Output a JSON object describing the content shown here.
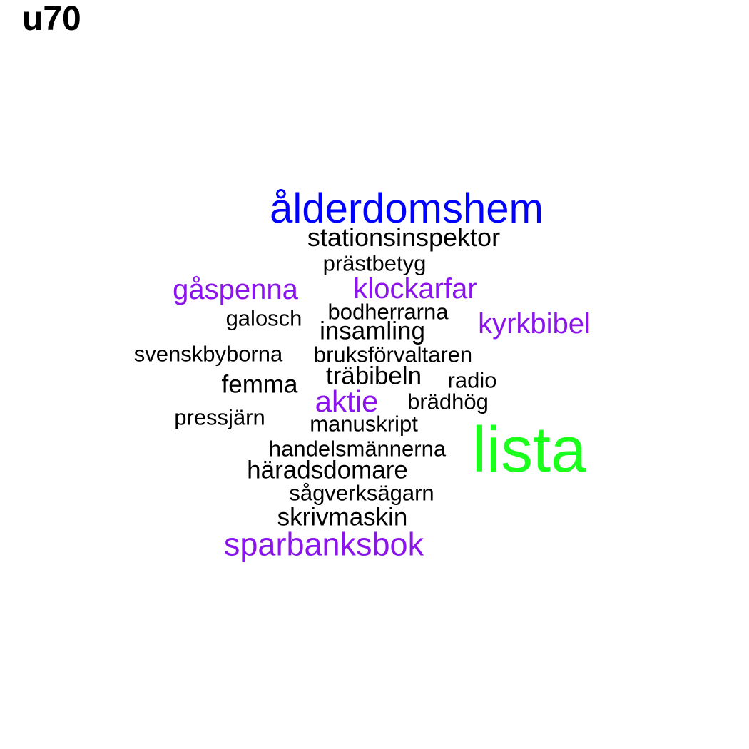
{
  "page": {
    "title": "u70"
  },
  "chart_data": {
    "type": "wordcloud",
    "title": "u70",
    "palette": {
      "black": "#000000",
      "purple": "#8b14ec",
      "blue": "#0000ff",
      "green": "#1cff1c"
    },
    "words": [
      {
        "key": "alderdomshem",
        "text": "ålderdomshem",
        "color": "#0000ff",
        "weight": 4
      },
      {
        "key": "stationsinsp",
        "text": "stationsinspektor",
        "color": "#000000",
        "weight": 2
      },
      {
        "key": "prastbetyg",
        "text": "prästbetyg",
        "color": "#000000",
        "weight": 1
      },
      {
        "key": "gaspenna",
        "text": "gåspenna",
        "color": "#8b14ec",
        "weight": 3
      },
      {
        "key": "klockarfar",
        "text": "klockarfar",
        "color": "#8b14ec",
        "weight": 3
      },
      {
        "key": "bodherrarna",
        "text": "bodherrarna",
        "color": "#000000",
        "weight": 1
      },
      {
        "key": "galosch",
        "text": "galosch",
        "color": "#000000",
        "weight": 1
      },
      {
        "key": "kyrkbibel",
        "text": "kyrkbibel",
        "color": "#8b14ec",
        "weight": 3
      },
      {
        "key": "insamling",
        "text": "insamling",
        "color": "#000000",
        "weight": 2
      },
      {
        "key": "svenskbyborna",
        "text": "svenskbyborna",
        "color": "#000000",
        "weight": 1
      },
      {
        "key": "bruksforv",
        "text": "bruksförvaltaren",
        "color": "#000000",
        "weight": 1
      },
      {
        "key": "trabibeln",
        "text": "träbibeln",
        "color": "#000000",
        "weight": 2
      },
      {
        "key": "radio",
        "text": "radio",
        "color": "#000000",
        "weight": 1
      },
      {
        "key": "femma",
        "text": "femma",
        "color": "#000000",
        "weight": 2
      },
      {
        "key": "aktie",
        "text": "aktie",
        "color": "#8b14ec",
        "weight": 3
      },
      {
        "key": "bradhog",
        "text": "brädhög",
        "color": "#000000",
        "weight": 1
      },
      {
        "key": "pressjarn",
        "text": "pressjärn",
        "color": "#000000",
        "weight": 1
      },
      {
        "key": "manuskript",
        "text": "manuskript",
        "color": "#000000",
        "weight": 1
      },
      {
        "key": "lista",
        "text": "lista",
        "color": "#1cff1c",
        "weight": 5
      },
      {
        "key": "handelsmann",
        "text": "handelsmännerna",
        "color": "#000000",
        "weight": 1
      },
      {
        "key": "haradsdomare",
        "text": "häradsdomare",
        "color": "#000000",
        "weight": 2
      },
      {
        "key": "sagverk",
        "text": "sågverksägarn",
        "color": "#000000",
        "weight": 1
      },
      {
        "key": "skrivmaskin",
        "text": "skrivmaskin",
        "color": "#000000",
        "weight": 2
      },
      {
        "key": "sparbanksbok",
        "text": "sparbanksbok",
        "color": "#8b14ec",
        "weight": 3
      }
    ]
  }
}
